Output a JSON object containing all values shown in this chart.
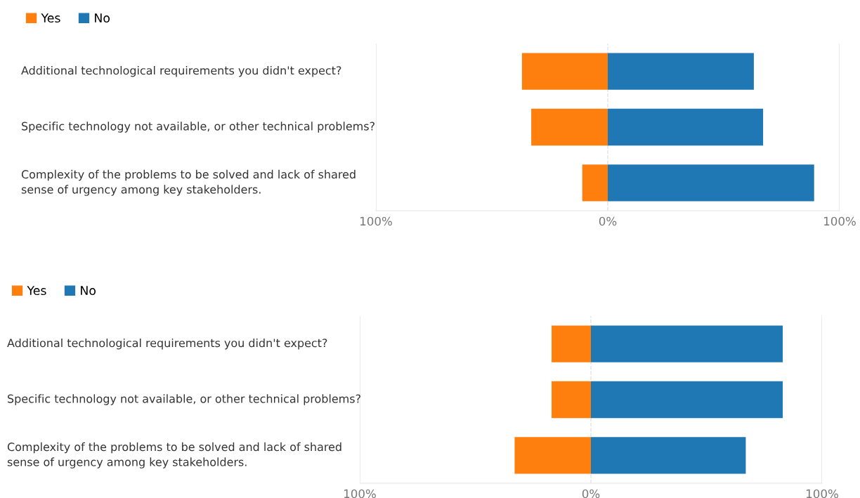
{
  "chart_data": [
    {
      "type": "bar",
      "orientation": "horizontal",
      "stacked": true,
      "categories": [
        "Additional technological requirements you didn't expect?",
        "Specific technology not available, or other technical problems?",
        "Complexity of the problems to be solved and lack of shared sense of urgency among key stakeholders."
      ],
      "series": [
        {
          "name": "Yes",
          "color": "#ff7f0e",
          "values": [
            -37,
            -33,
            -11
          ]
        },
        {
          "name": "No",
          "color": "#1f77b4",
          "values": [
            63,
            67,
            89
          ]
        }
      ],
      "xlim": [
        -100,
        100
      ],
      "xticks": [
        {
          "value": -100,
          "label": "100%"
        },
        {
          "value": 0,
          "label": "0%"
        },
        {
          "value": 100,
          "label": "100%"
        }
      ],
      "grid": "x",
      "legend": "top left"
    },
    {
      "type": "bar",
      "orientation": "horizontal",
      "stacked": true,
      "categories": [
        "Additional technological requirements you didn't expect?",
        "Specific technology not available, or other technical problems?",
        "Complexity of the problems to be solved and lack of shared sense of urgency among key stakeholders."
      ],
      "series": [
        {
          "name": "Yes",
          "color": "#ff7f0e",
          "values": [
            -17,
            -17,
            -33
          ]
        },
        {
          "name": "No",
          "color": "#1f77b4",
          "values": [
            83,
            83,
            67
          ]
        }
      ],
      "xlim": [
        -100,
        100
      ],
      "xticks": [
        {
          "value": -100,
          "label": "100%"
        },
        {
          "value": 0,
          "label": "0%"
        },
        {
          "value": 100,
          "label": "100%"
        }
      ],
      "grid": "x",
      "legend": "top left"
    }
  ]
}
